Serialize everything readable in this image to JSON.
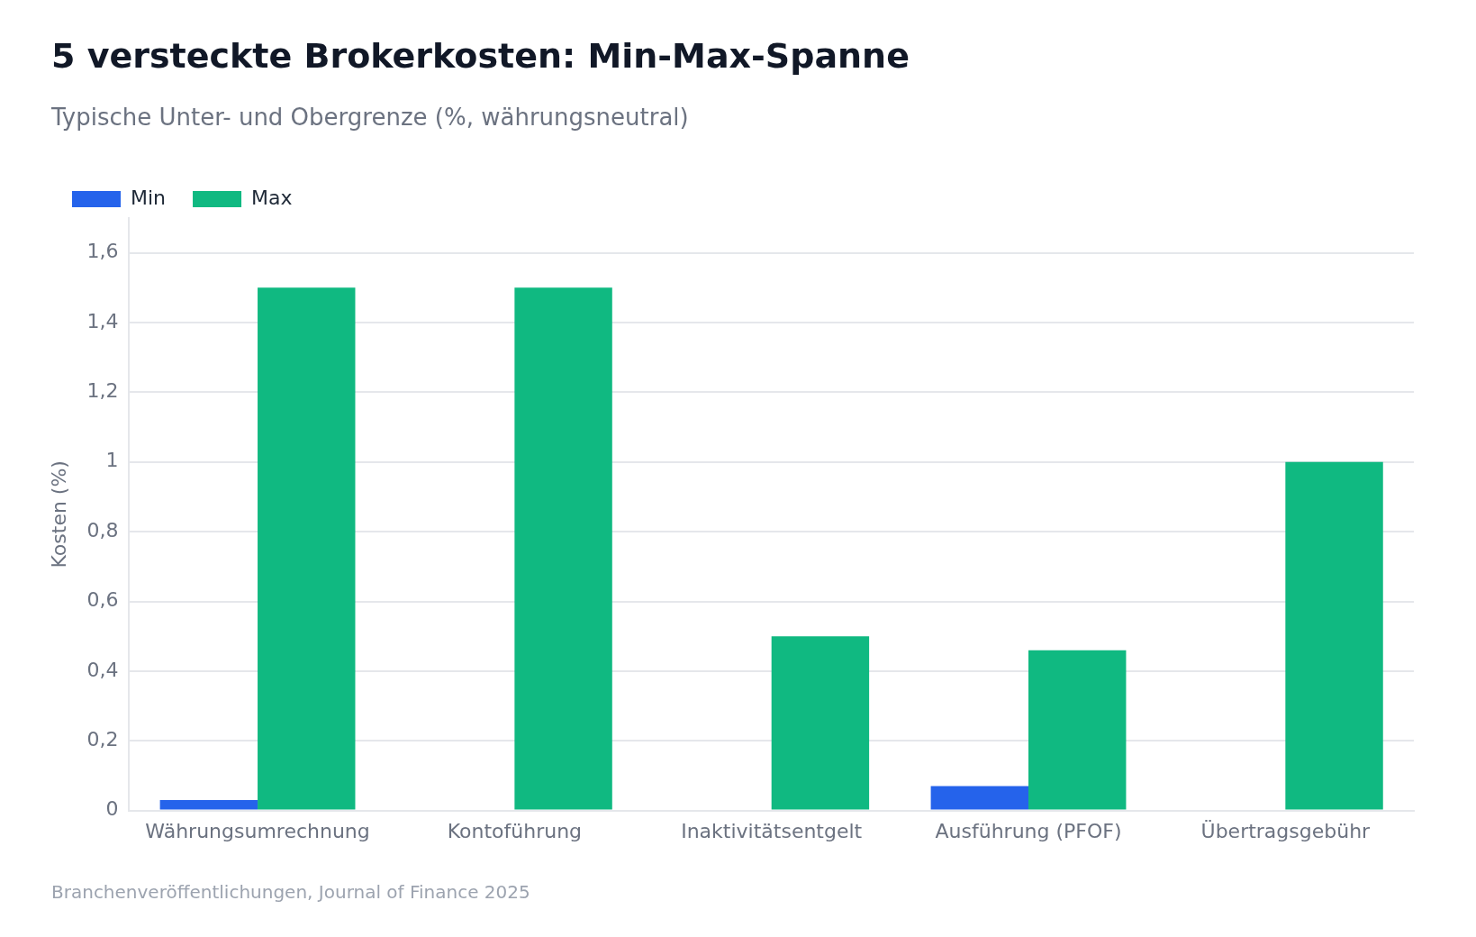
{
  "chart_data": {
    "type": "bar",
    "title": "5 versteckte Brokerkosten: Min-Max-Spanne",
    "subtitle": "Typische Unter- und Obergrenze (%, währungsneutral)",
    "ylabel": "Kosten (%)",
    "categories": [
      "Währungsumrechnung",
      "Kontoführung",
      "Inaktivitätsentgelt",
      "Ausführung (PFOF)",
      "Übertragsgebühr"
    ],
    "series": [
      {
        "name": "Min",
        "color": "#2563eb",
        "values": [
          0.03,
          0,
          0,
          0.07,
          0
        ]
      },
      {
        "name": "Max",
        "color": "#10b981",
        "values": [
          1.5,
          1.5,
          0.5,
          0.46,
          1.0
        ]
      }
    ],
    "ylim": [
      0,
      1.7
    ],
    "yticks": [
      0,
      {
        "value": 0.2,
        "label": "0,2"
      },
      {
        "value": 0.4,
        "label": "0,4"
      },
      {
        "value": 0.6,
        "label": "0,6"
      },
      {
        "value": 0.8,
        "label": "0,8"
      },
      1,
      {
        "value": 1.2,
        "label": "1,2"
      },
      {
        "value": 1.4,
        "label": "1,4"
      },
      {
        "value": 1.6,
        "label": "1,6"
      }
    ],
    "grid": "y",
    "legend": "top left",
    "annotations": [
      "Branchenveröffentlichungen, Journal of Finance 2025"
    ]
  }
}
